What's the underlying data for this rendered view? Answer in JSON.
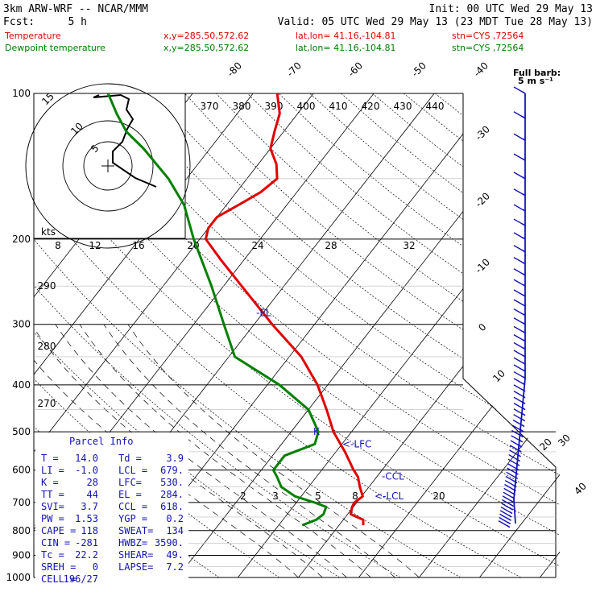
{
  "header": {
    "model": "3km ARW-WRF -- NCAR/MMM",
    "init": "Init: 00 UTC Wed 29 May 13",
    "fcst_label": "Fcst:",
    "fcst_value": "5 h",
    "valid": "Valid: 05 UTC Wed 29 May 13 (23 MDT Tue 28 May 13)",
    "temp_line": {
      "name": "Temperature",
      "xy": "x,y=285.50,572.62",
      "latlon": "lat,lon= 41.16,-104.81",
      "stn": "stn=CYS ,72564"
    },
    "dew_line": {
      "name": "Dewpoint temperature",
      "xy": "x,y=285.50,572.62",
      "latlon": "lat,lon= 41.16,-104.81",
      "stn": "stn=CYS ,72564"
    }
  },
  "colors": {
    "temperature": "#e00000",
    "dewpoint": "#008000",
    "barbs": "#1414b4",
    "parcel_info": "#1414b4",
    "isobars": "#000000"
  },
  "chart_data": {
    "type": "line",
    "title": "",
    "ylabel": "",
    "y_scale": "log-pressure",
    "ylim": [
      1000,
      100
    ],
    "pressure_ticks": [
      100,
      200,
      300,
      400,
      500,
      600,
      700,
      800,
      900,
      1000
    ],
    "isotherm_labels": [
      "-80",
      "-70",
      "-60",
      "-50",
      "-40",
      "-30",
      "-20",
      "-10",
      "0",
      "10",
      "20",
      "30",
      "40"
    ],
    "theta_e_labels": [
      "370",
      "380",
      "390",
      "400",
      "410",
      "420",
      "430",
      "440"
    ],
    "mixing_ratio_labels": [
      "2",
      "3",
      "5",
      "8",
      "20"
    ],
    "dry_adiabat_labels": [
      "290",
      "280",
      "270"
    ],
    "hodograph_speed_labels": [
      "kts",
      "8",
      "12",
      "16",
      "20",
      "24",
      "28",
      "32"
    ],
    "hodograph_ring_labels": [
      "5",
      "10",
      "15"
    ],
    "barb_legend": {
      "line1": "Full barb:",
      "line2": "5 m s⁻¹"
    },
    "series": [
      {
        "name": "Temperature",
        "points": [
          {
            "p": 780,
            "t": 14.0
          },
          {
            "p": 760,
            "t": 13.3
          },
          {
            "p": 740,
            "t": 10.5
          },
          {
            "p": 715,
            "t": 9.8
          },
          {
            "p": 700,
            "t": 9.6
          },
          {
            "p": 680,
            "t": 10.2
          },
          {
            "p": 650,
            "t": 8.5
          },
          {
            "p": 620,
            "t": 6.9
          },
          {
            "p": 600,
            "t": 5.3
          },
          {
            "p": 550,
            "t": 1.5
          },
          {
            "p": 500,
            "t": -3.0
          },
          {
            "p": 450,
            "t": -7.0
          },
          {
            "p": 400,
            "t": -11.7
          },
          {
            "p": 350,
            "t": -18.0
          },
          {
            "p": 300,
            "t": -27.0
          },
          {
            "p": 250,
            "t": -37.0
          },
          {
            "p": 220,
            "t": -44.0
          },
          {
            "p": 200,
            "t": -49.0
          },
          {
            "p": 190,
            "t": -50.0
          },
          {
            "p": 180,
            "t": -50.0
          },
          {
            "p": 170,
            "t": -48.0
          },
          {
            "p": 160,
            "t": -46.0
          },
          {
            "p": 150,
            "t": -45.0
          },
          {
            "p": 140,
            "t": -47.0
          },
          {
            "p": 130,
            "t": -50.0
          },
          {
            "p": 120,
            "t": -51.5
          },
          {
            "p": 110,
            "t": -53.0
          },
          {
            "p": 100,
            "t": -56.0
          }
        ]
      },
      {
        "name": "Dewpoint temperature",
        "points": [
          {
            "p": 780,
            "t": 3.9
          },
          {
            "p": 760,
            "t": 5.5
          },
          {
            "p": 740,
            "t": 6.0
          },
          {
            "p": 715,
            "t": 5.5
          },
          {
            "p": 700,
            "t": 3.0
          },
          {
            "p": 680,
            "t": -1.0
          },
          {
            "p": 650,
            "t": -4.5
          },
          {
            "p": 620,
            "t": -6.5
          },
          {
            "p": 600,
            "t": -8.0
          },
          {
            "p": 560,
            "t": -8.0
          },
          {
            "p": 530,
            "t": -4.5
          },
          {
            "p": 500,
            "t": -5.5
          },
          {
            "p": 450,
            "t": -10.0
          },
          {
            "p": 400,
            "t": -18.0
          },
          {
            "p": 350,
            "t": -29.0
          },
          {
            "p": 300,
            "t": -35.0
          },
          {
            "p": 250,
            "t": -42.0
          },
          {
            "p": 200,
            "t": -51.0
          },
          {
            "p": 170,
            "t": -57.0
          },
          {
            "p": 150,
            "t": -63.0
          },
          {
            "p": 130,
            "t": -71.0
          },
          {
            "p": 120,
            "t": -76.0
          },
          {
            "p": 110,
            "t": -80.0
          },
          {
            "p": 100,
            "t": -84.0
          }
        ]
      }
    ],
    "annotations": [
      {
        "text": "-EL",
        "p": 284
      },
      {
        "text": "<-LFC",
        "p": 530
      },
      {
        "text": "-CCL",
        "p": 618
      },
      {
        "text": "<-LCL",
        "p": 679
      }
    ],
    "parcel_info": {
      "title": "Parcel Info",
      "rows": [
        [
          "T  =",
          "14.0",
          "Td =",
          "3.9"
        ],
        [
          "LI =",
          "-1.0",
          "LCL =",
          "679."
        ],
        [
          "K  =",
          "28",
          "LFC=",
          "530."
        ],
        [
          "TT =",
          "44",
          "EL =",
          "284."
        ],
        [
          "SVI=",
          "3.7",
          "CCL =",
          "618."
        ],
        [
          "PW =",
          "1.53",
          "YGP =",
          "0.2"
        ],
        [
          "CAPE =",
          "118",
          "SWEAT=",
          "134"
        ],
        [
          "CIN =",
          "-281",
          "HWBZ=",
          "3590."
        ],
        [
          "Tc =",
          "22.2",
          "SHEAR=",
          "49."
        ],
        [
          "SREH =",
          "0",
          "LAPSE=",
          "7.2"
        ],
        [
          "CELL =",
          "196/27",
          "",
          ""
        ]
      ]
    }
  }
}
